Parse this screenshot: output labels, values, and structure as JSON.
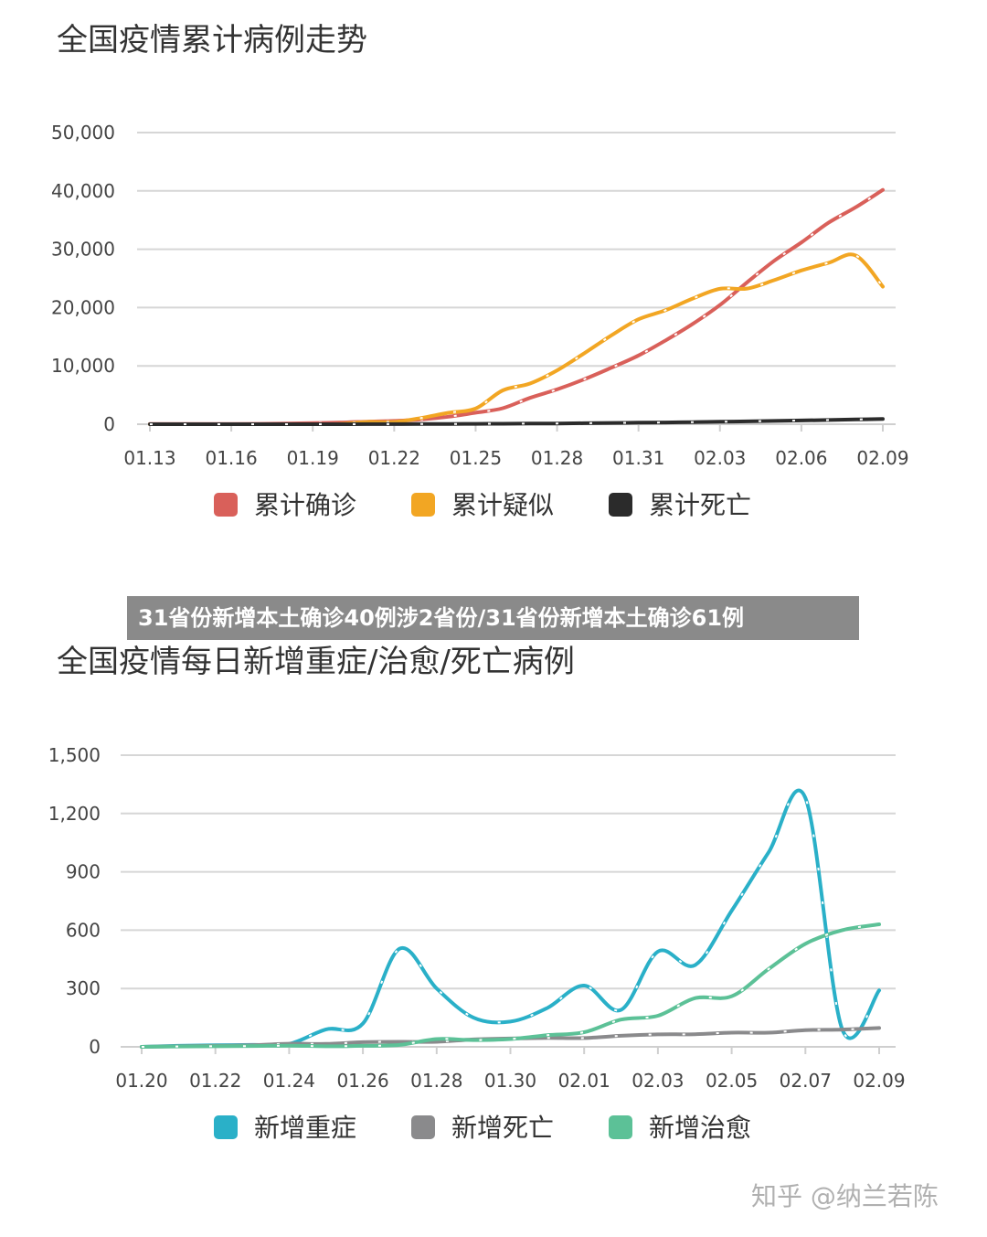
{
  "banner": {
    "text": "31省份新增本土确诊40例涉2省份/31省份新增本土确诊61例"
  },
  "watermark": {
    "text": "知乎 @纳兰若陈"
  },
  "chart_data": [
    {
      "type": "line",
      "title": "全国疫情累计病例走势",
      "xlabel": "",
      "ylabel": "",
      "x": [
        "01.13",
        "01.14",
        "01.15",
        "01.16",
        "01.17",
        "01.18",
        "01.19",
        "01.20",
        "01.21",
        "01.22",
        "01.23",
        "01.24",
        "01.25",
        "01.26",
        "01.27",
        "01.28",
        "01.29",
        "01.30",
        "01.31",
        "02.01",
        "02.02",
        "02.03",
        "02.04",
        "02.05",
        "02.06",
        "02.07",
        "02.08",
        "02.09"
      ],
      "x_ticks": [
        "01.13",
        "01.16",
        "01.19",
        "01.22",
        "01.25",
        "01.28",
        "01.31",
        "02.03",
        "02.06",
        "02.09"
      ],
      "y_ticks": [
        "0",
        "10,000",
        "20,000",
        "30,000",
        "40,000",
        "50,000"
      ],
      "ylim": [
        0,
        50000
      ],
      "grid": true,
      "legend": "bottom",
      "series": [
        {
          "name": "累计确诊",
          "color": "#d9605a",
          "values": [
            41,
            41,
            41,
            45,
            62,
            121,
            198,
            291,
            440,
            571,
            830,
            1287,
            1975,
            2744,
            4515,
            5974,
            7711,
            9692,
            11791,
            14380,
            17205,
            20438,
            24324,
            28018,
            31161,
            34546,
            37198,
            40171
          ]
        },
        {
          "name": "累计疑似",
          "color": "#f2a623",
          "values": [
            0,
            0,
            0,
            0,
            0,
            0,
            0,
            54,
            393,
            393,
            1072,
            1965,
            2684,
            5794,
            6973,
            9239,
            12167,
            15238,
            17988,
            19544,
            21558,
            23214,
            23260,
            24702,
            26359,
            27657,
            28942,
            23589
          ]
        },
        {
          "name": "累计死亡",
          "color": "#2b2b2b",
          "values": [
            1,
            1,
            1,
            2,
            2,
            2,
            3,
            6,
            9,
            17,
            25,
            41,
            56,
            80,
            106,
            132,
            170,
            213,
            259,
            304,
            361,
            425,
            490,
            563,
            636,
            722,
            811,
            908
          ]
        }
      ]
    },
    {
      "type": "line",
      "title": "全国疫情每日新增重症/治愈/死亡病例",
      "xlabel": "",
      "ylabel": "",
      "x": [
        "01.20",
        "01.21",
        "01.22",
        "01.23",
        "01.24",
        "01.25",
        "01.26",
        "01.27",
        "01.28",
        "01.29",
        "01.30",
        "01.31",
        "02.01",
        "02.02",
        "02.03",
        "02.04",
        "02.05",
        "02.06",
        "02.07",
        "02.08",
        "02.09"
      ],
      "x_ticks": [
        "01.20",
        "01.22",
        "01.24",
        "01.26",
        "01.28",
        "01.30",
        "02.01",
        "02.03",
        "02.05",
        "02.07",
        "02.09"
      ],
      "y_ticks": [
        "0",
        "300",
        "600",
        "900",
        "1,200",
        "1,500"
      ],
      "ylim": [
        0,
        1500
      ],
      "grid": true,
      "legend": "bottom",
      "series": [
        {
          "name": "新增重症",
          "color": "#2ab0c8",
          "values": [
            0,
            5,
            8,
            10,
            15,
            90,
            120,
            505,
            300,
            150,
            130,
            200,
            315,
            190,
            490,
            420,
            700,
            1000,
            1280,
            90,
            290
          ]
        },
        {
          "name": "新增死亡",
          "color": "#8a8a8c",
          "values": [
            0,
            3,
            5,
            8,
            16,
            15,
            24,
            26,
            26,
            38,
            43,
            46,
            45,
            57,
            64,
            65,
            73,
            73,
            86,
            89,
            97
          ]
        },
        {
          "name": "新增治愈",
          "color": "#5cc197",
          "values": [
            0,
            2,
            3,
            4,
            6,
            3,
            5,
            10,
            40,
            35,
            40,
            60,
            75,
            140,
            160,
            250,
            260,
            400,
            530,
            600,
            630
          ]
        }
      ]
    }
  ]
}
